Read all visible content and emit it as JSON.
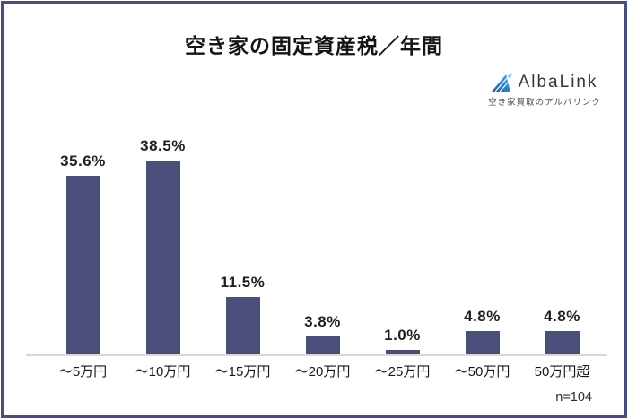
{
  "page": {
    "title": "空き家の固定資産税／年間",
    "sample_size": "n=104"
  },
  "logo": {
    "brand": "AlbaLink",
    "tagline": "空き家買取のアルバリンク",
    "icon": "albalink-sail-triangle-icon",
    "icon_colors": {
      "gradient_start": "#1c55a0",
      "gradient_end": "#43b3e5",
      "accent": "#7fd0f0"
    }
  },
  "chart_data": {
    "type": "bar",
    "title": "空き家の固定資産税／年間",
    "categories": [
      "～5万円",
      "～10万円",
      "～15万円",
      "～20万円",
      "～25万円",
      "～50万円",
      "50万円超"
    ],
    "values": [
      35.6,
      38.5,
      11.5,
      3.8,
      1.0,
      4.8,
      4.8
    ],
    "value_labels": [
      "35.6%",
      "38.5%",
      "11.5%",
      "3.8%",
      "1.0%",
      "4.8%",
      "4.8%"
    ],
    "unit": "%",
    "bar_color": "#4a4e7a",
    "ylim": [
      0,
      40
    ],
    "grid": false,
    "legend": null,
    "value_labels_position": "above-bars",
    "annotation": "n=104"
  },
  "colors": {
    "border": "#494e7d",
    "axis_line": "#d8d8d8",
    "background": "#ffffff"
  }
}
